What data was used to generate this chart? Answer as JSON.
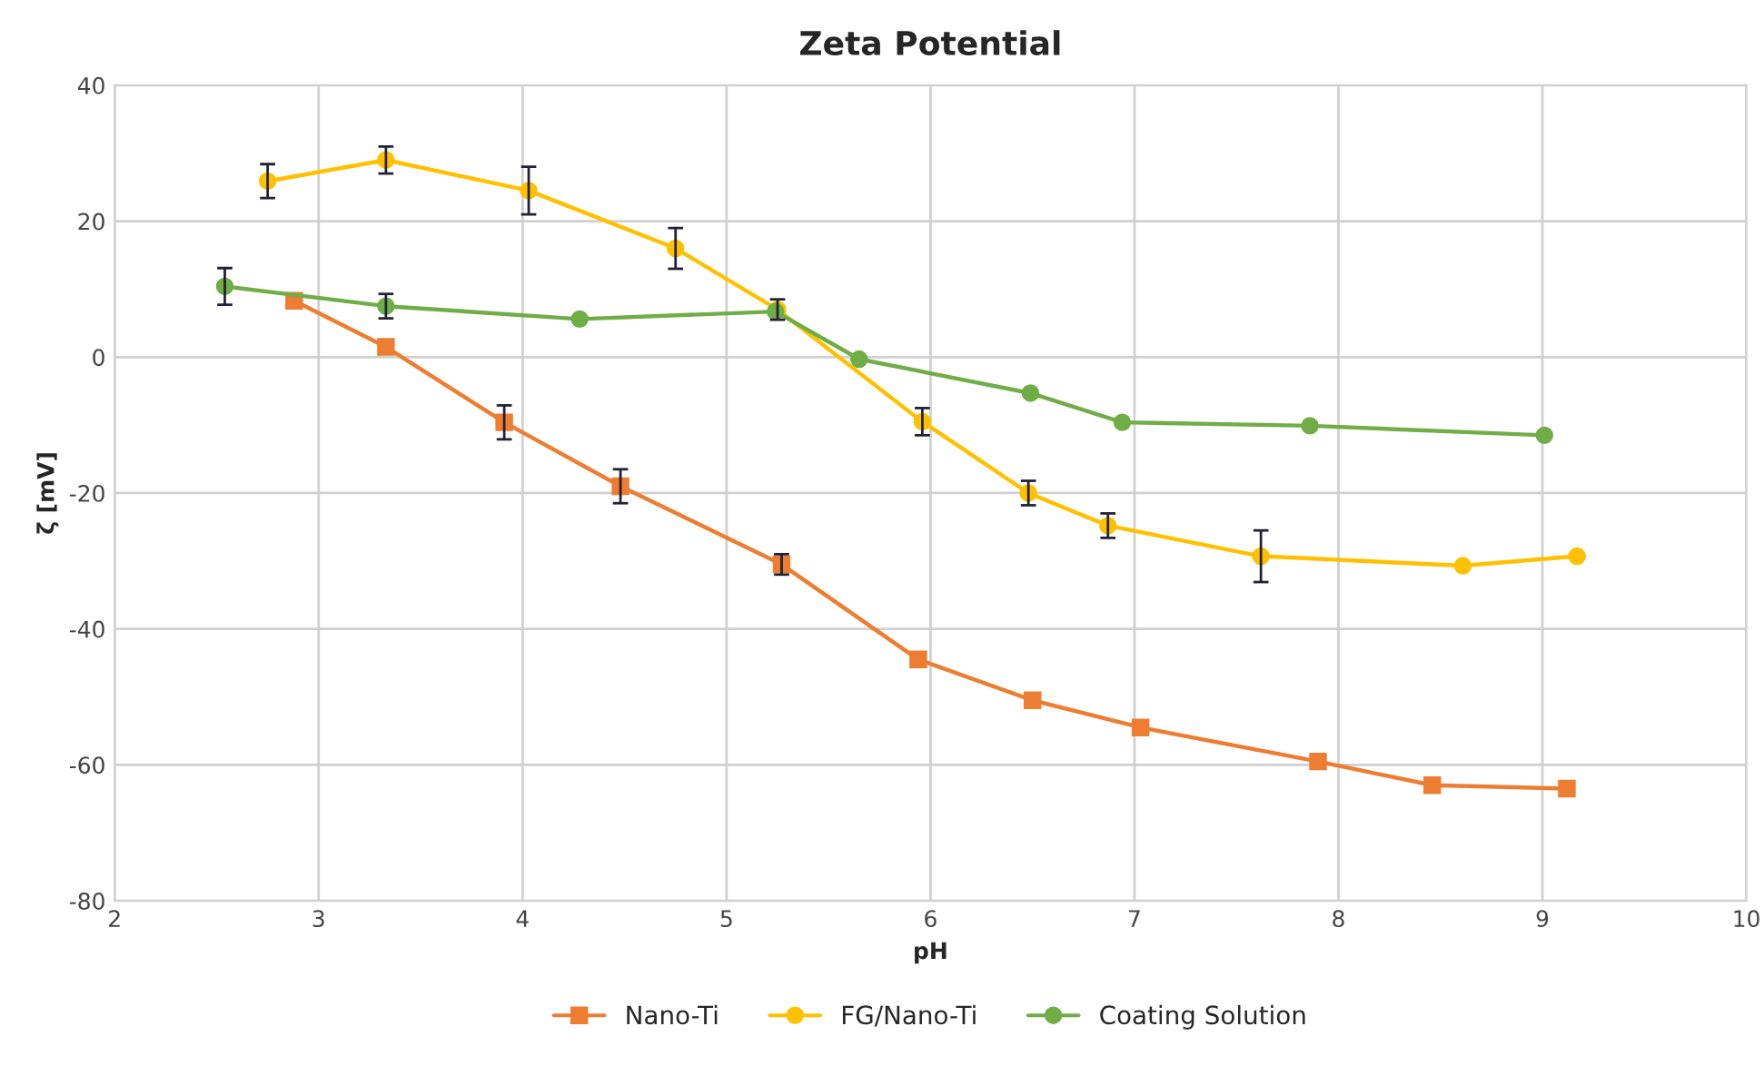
{
  "chart_data": {
    "type": "line",
    "title": "Zeta Potential",
    "xlabel": "pH",
    "ylabel": "ζ [mV]",
    "xlim": [
      2,
      10
    ],
    "xticks": [
      2,
      3,
      4,
      5,
      6,
      7,
      8,
      9,
      10
    ],
    "ylim": [
      -80,
      40
    ],
    "yticks": [
      -80,
      -60,
      -40,
      -20,
      0,
      20,
      40
    ],
    "grid": true,
    "legend": "bottom",
    "line_style": "solid",
    "series": [
      {
        "name": "Nano-Ti",
        "color": "#ed7d31",
        "marker": "square",
        "x": [
          2.88,
          3.33,
          3.91,
          4.48,
          5.27,
          5.94,
          6.5,
          7.03,
          7.9,
          8.46,
          9.12
        ],
        "values": [
          8.3,
          1.5,
          -9.6,
          -19,
          -30.5,
          -44.5,
          -50.5,
          -54.5,
          -59.5,
          -63,
          -63.5
        ],
        "errors": [
          null,
          null,
          2.5,
          2.5,
          1.5,
          null,
          null,
          null,
          null,
          null,
          null
        ]
      },
      {
        "name": "FG/Nano-Ti",
        "color": "#ffc000",
        "marker": "circle",
        "x": [
          2.75,
          3.33,
          4.03,
          4.75,
          5.25,
          5.96,
          6.48,
          6.87,
          7.62,
          8.61,
          9.17
        ],
        "values": [
          25.9,
          29,
          24.5,
          16,
          7,
          -9.5,
          -20,
          -24.8,
          -29.3,
          -30.7,
          -29.3
        ],
        "errors": [
          2.5,
          2,
          3.5,
          3,
          1.5,
          2,
          1.8,
          1.8,
          3.8,
          null,
          null
        ]
      },
      {
        "name": "Coating Solution",
        "color": "#70ad47",
        "marker": "circle",
        "x": [
          2.54,
          3.33,
          4.28,
          5.24,
          5.65,
          6.49,
          6.94,
          7.86,
          9.01
        ],
        "values": [
          10.4,
          7.5,
          5.6,
          6.7,
          -0.3,
          -5.3,
          -9.6,
          -10.1,
          -11.5
        ],
        "errors": [
          2.7,
          1.8,
          null,
          null,
          null,
          null,
          null,
          null,
          null
        ]
      }
    ]
  }
}
